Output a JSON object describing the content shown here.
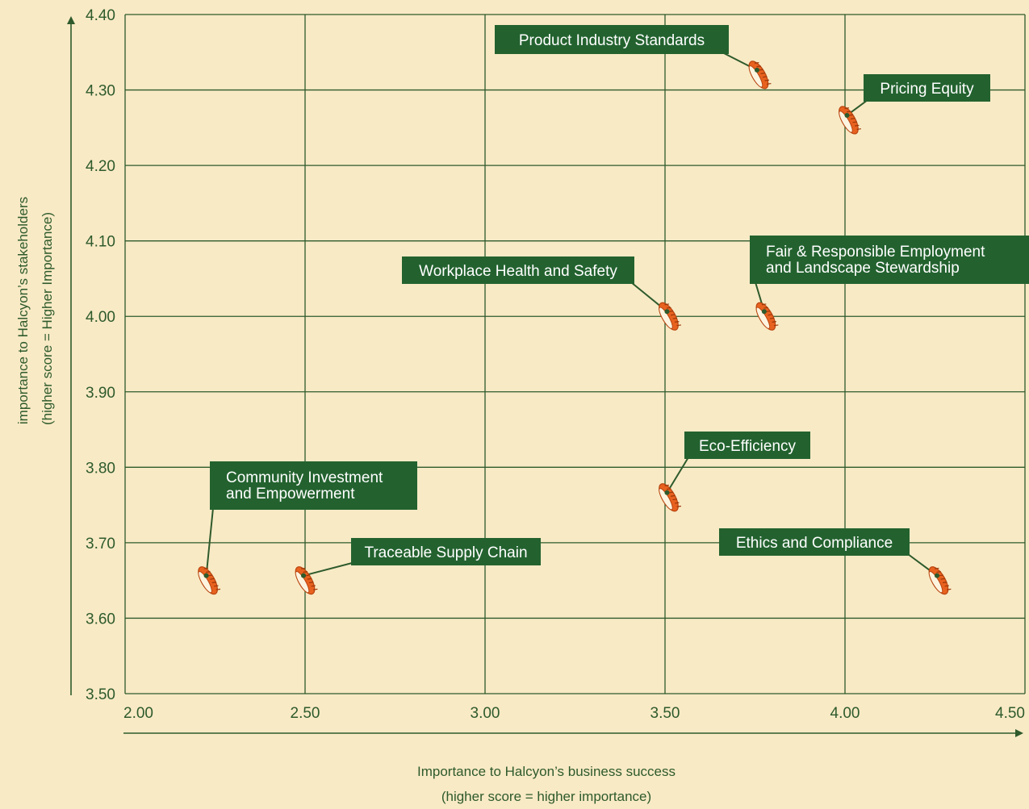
{
  "chart_data": {
    "type": "scatter",
    "xlabel": [
      "Importance to Halcyon’s business success",
      "(higher score = higher importance)"
    ],
    "ylabel": [
      "importance to Halcyon’s stakeholders",
      "(higher score = Higher Importance)"
    ],
    "xlim": [
      2.0,
      4.5
    ],
    "ylim": [
      3.5,
      4.4
    ],
    "x_ticks": [
      "2.00",
      "2.50",
      "3.00",
      "3.50",
      "4.00",
      "4.50"
    ],
    "y_ticks": [
      "3.50",
      "3.60",
      "3.70",
      "3.80",
      "3.90",
      "4.00",
      "4.10",
      "4.20",
      "4.30",
      "4.40"
    ],
    "grid": true,
    "points": [
      {
        "label": [
          "Product Industry Standards"
        ],
        "x": 3.76,
        "y": 4.32
      },
      {
        "label": [
          "Pricing Equity"
        ],
        "x": 4.01,
        "y": 4.26
      },
      {
        "label": [
          "Workplace Health and Safety"
        ],
        "x": 3.51,
        "y": 4.0
      },
      {
        "label": [
          "Fair & Responsible Employment",
          "and Landscape Stewardship"
        ],
        "x": 3.78,
        "y": 4.0
      },
      {
        "label": [
          "Eco-Efficiency"
        ],
        "x": 3.51,
        "y": 3.76
      },
      {
        "label": [
          "Community Investment",
          "and Empowerment"
        ],
        "x": 2.23,
        "y": 3.65
      },
      {
        "label": [
          "Traceable Supply Chain"
        ],
        "x": 2.5,
        "y": 3.65
      },
      {
        "label": [
          "Ethics and Compliance"
        ],
        "x": 4.26,
        "y": 3.65
      }
    ]
  },
  "colors": {
    "background": "#f8eac5",
    "grid": "#2e5a2c",
    "label_box": "#23622f",
    "marker": "#e8621f"
  },
  "icons": {
    "marker": "tire-icon"
  }
}
